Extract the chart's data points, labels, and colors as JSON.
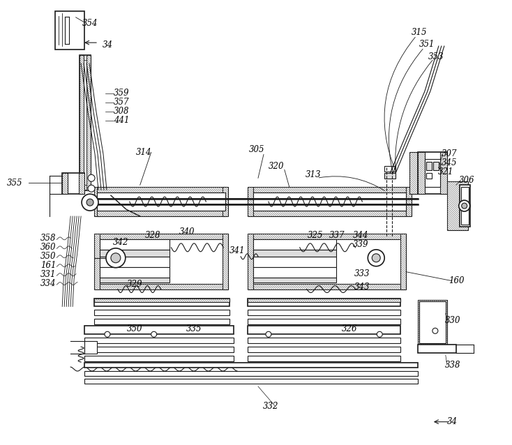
{
  "background_color": "#ffffff",
  "line_color": "#1a1a1a",
  "fig_width": 7.34,
  "fig_height": 6.38,
  "dpi": 100,
  "labels": [
    [
      "354",
      128,
      32,
      8.5
    ],
    [
      "34",
      153,
      63,
      8.5
    ],
    [
      "359",
      173,
      133,
      8.5
    ],
    [
      "357",
      173,
      146,
      8.5
    ],
    [
      "308",
      173,
      159,
      8.5
    ],
    [
      "441",
      173,
      172,
      8.5
    ],
    [
      "314",
      205,
      218,
      8.5
    ],
    [
      "355",
      20,
      262,
      8.5
    ],
    [
      "358",
      68,
      342,
      8.5
    ],
    [
      "360",
      68,
      355,
      8.5
    ],
    [
      "350",
      68,
      368,
      8.5
    ],
    [
      "161",
      68,
      381,
      8.5
    ],
    [
      "331",
      68,
      394,
      8.5
    ],
    [
      "334",
      68,
      407,
      8.5
    ],
    [
      "342",
      172,
      348,
      8.5
    ],
    [
      "328",
      218,
      338,
      8.5
    ],
    [
      "340",
      268,
      333,
      8.5
    ],
    [
      "341",
      340,
      360,
      8.5
    ],
    [
      "329",
      192,
      408,
      8.5
    ],
    [
      "350",
      192,
      472,
      8.5
    ],
    [
      "335",
      278,
      472,
      8.5
    ],
    [
      "305",
      368,
      214,
      8.5
    ],
    [
      "320",
      396,
      238,
      8.5
    ],
    [
      "313",
      449,
      250,
      8.5
    ],
    [
      "325",
      452,
      338,
      8.5
    ],
    [
      "337",
      484,
      338,
      8.5
    ],
    [
      "344",
      518,
      338,
      8.5
    ],
    [
      "339",
      518,
      351,
      8.5
    ],
    [
      "333",
      520,
      393,
      8.5
    ],
    [
      "343",
      520,
      412,
      8.5
    ],
    [
      "326",
      502,
      472,
      8.5
    ],
    [
      "315",
      602,
      45,
      8.5
    ],
    [
      "351",
      613,
      62,
      8.5
    ],
    [
      "353",
      626,
      80,
      8.5
    ],
    [
      "307",
      645,
      220,
      8.5
    ],
    [
      "345",
      645,
      233,
      8.5
    ],
    [
      "321",
      640,
      246,
      8.5
    ],
    [
      "306",
      670,
      258,
      8.5
    ],
    [
      "160",
      656,
      403,
      8.5
    ],
    [
      "330",
      650,
      460,
      8.5
    ],
    [
      "338",
      650,
      524,
      8.5
    ],
    [
      "332",
      388,
      584,
      8.5
    ],
    [
      "34",
      650,
      606,
      8.5
    ]
  ]
}
